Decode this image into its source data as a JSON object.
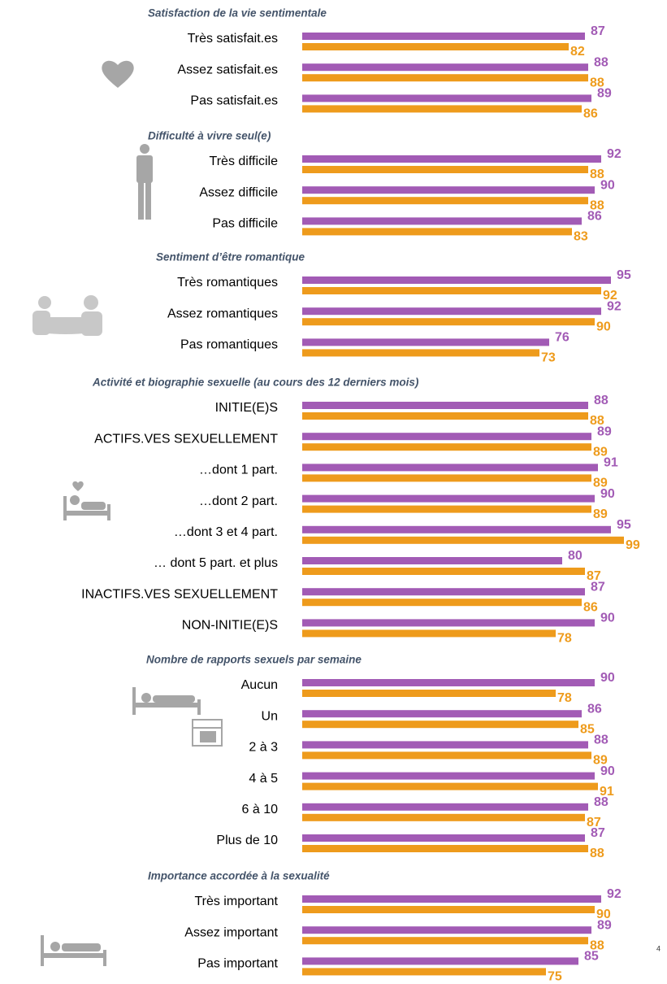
{
  "chart_data": [
    {
      "type": "bar",
      "title": "Satisfaction de la vie sentimentale",
      "categories": [
        "Très satisfait.es",
        "Assez satisfait.es",
        "Pas satisfait.es"
      ],
      "series": [
        {
          "color": "#a25bb5",
          "values": [
            87,
            88,
            89
          ]
        },
        {
          "color": "#ee9b1c",
          "values": [
            82,
            88,
            86
          ]
        }
      ],
      "xlim": [
        0,
        100
      ]
    },
    {
      "type": "bar",
      "title": "Difficulté à vivre seul(e)",
      "categories": [
        "Très difficile",
        "Assez difficile",
        "Pas difficile"
      ],
      "series": [
        {
          "color": "#a25bb5",
          "values": [
            92,
            90,
            86
          ]
        },
        {
          "color": "#ee9b1c",
          "values": [
            88,
            88,
            83
          ]
        }
      ],
      "xlim": [
        0,
        100
      ]
    },
    {
      "type": "bar",
      "title": "Sentiment d’être romantique",
      "categories": [
        "Très romantiques",
        "Assez romantiques",
        "Pas romantiques"
      ],
      "series": [
        {
          "color": "#a25bb5",
          "values": [
            95,
            92,
            76
          ]
        },
        {
          "color": "#ee9b1c",
          "values": [
            92,
            90,
            73
          ]
        }
      ],
      "xlim": [
        0,
        100
      ]
    },
    {
      "type": "bar",
      "title": "Activité et biographie sexuelle (au cours des 12 derniers mois)",
      "categories": [
        "INITIE(E)S",
        "ACTIFS.VES SEXUELLEMENT",
        "…dont 1 part.",
        "…dont 2 part.",
        "…dont 3 et 4 part.",
        "… dont 5 part. et plus",
        "INACTIFS.VES SEXUELLEMENT",
        "NON-INITIE(E)S"
      ],
      "series": [
        {
          "color": "#a25bb5",
          "values": [
            88,
            89,
            91,
            90,
            95,
            80,
            87,
            90
          ]
        },
        {
          "color": "#ee9b1c",
          "values": [
            88,
            89,
            89,
            89,
            99,
            87,
            86,
            78
          ]
        }
      ],
      "xlim": [
        0,
        100
      ]
    },
    {
      "type": "bar",
      "title": "Nombre de rapports sexuels par semaine",
      "categories": [
        "Aucun",
        "Un",
        "2 à 3",
        "4 à 5",
        "6 à 10",
        "Plus de 10"
      ],
      "series": [
        {
          "color": "#a25bb5",
          "values": [
            90,
            86,
            88,
            90,
            88,
            87
          ]
        },
        {
          "color": "#ee9b1c",
          "values": [
            78,
            85,
            89,
            91,
            87,
            88
          ]
        }
      ],
      "xlim": [
        0,
        100
      ]
    },
    {
      "type": "bar",
      "title": "Importance accordée à la sexualité",
      "categories": [
        "Très important",
        "Assez important",
        "Pas important"
      ],
      "series": [
        {
          "color": "#a25bb5",
          "values": [
            92,
            89,
            85
          ]
        },
        {
          "color": "#ee9b1c",
          "values": [
            90,
            88,
            75
          ]
        }
      ],
      "xlim": [
        0,
        100
      ]
    }
  ],
  "page_number": "4"
}
